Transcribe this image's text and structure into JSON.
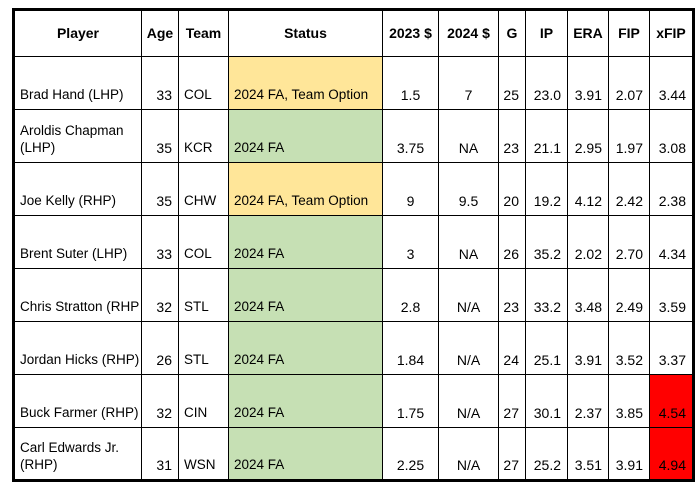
{
  "table": {
    "header": {
      "cells": [
        "Player",
        "Age",
        "Team",
        "Status",
        "2023 $",
        "2024 $",
        "G",
        "IP",
        "ERA",
        "FIP",
        "xFIP"
      ]
    },
    "rows": [
      {
        "player": "Brad Hand (LHP)",
        "age": "33",
        "team": "COL",
        "status": "2024 FA, Team Option",
        "status_color": "#FFE699",
        "money_2023": "1.5",
        "money_2024": "7",
        "g": "25",
        "ip": "23.0",
        "era": "3.91",
        "fip": "2.07",
        "xfip": "3.44",
        "xfip_color": "#FFFFFF"
      },
      {
        "player": "Aroldis Chapman (LHP)",
        "age": "35",
        "team": "KCR",
        "status": "2024 FA",
        "status_color": "#C6E0B4",
        "money_2023": "3.75",
        "money_2024": "NA",
        "g": "23",
        "ip": "21.1",
        "era": "2.95",
        "fip": "1.97",
        "xfip": "3.08",
        "xfip_color": "#FFFFFF"
      },
      {
        "player": "Joe Kelly (RHP)",
        "age": "35",
        "team": "CHW",
        "status": "2024 FA, Team Option",
        "status_color": "#FFE699",
        "money_2023": "9",
        "money_2024": "9.5",
        "g": "20",
        "ip": "19.2",
        "era": "4.12",
        "fip": "2.42",
        "xfip": "2.38",
        "xfip_color": "#FFFFFF"
      },
      {
        "player": "Brent Suter (LHP)",
        "age": "33",
        "team": "COL",
        "status": "2024 FA",
        "status_color": "#C6E0B4",
        "money_2023": "3",
        "money_2024": "NA",
        "g": "26",
        "ip": "35.2",
        "era": "2.02",
        "fip": "2.70",
        "xfip": "4.34",
        "xfip_color": "#FFFFFF"
      },
      {
        "player": "Chris Stratton (RHP",
        "age": "32",
        "team": "STL",
        "status": "2024 FA",
        "status_color": "#C6E0B4",
        "money_2023": "2.8",
        "money_2024": "N/A",
        "g": "23",
        "ip": "33.2",
        "era": "3.48",
        "fip": "2.49",
        "xfip": "3.59",
        "xfip_color": "#FFFFFF"
      },
      {
        "player": "Jordan Hicks (RHP)",
        "age": "26",
        "team": "STL",
        "status": "2024 FA",
        "status_color": "#C6E0B4",
        "money_2023": "1.84",
        "money_2024": "N/A",
        "g": "24",
        "ip": "25.1",
        "era": "3.91",
        "fip": "3.52",
        "xfip": "3.37",
        "xfip_color": "#FFFFFF"
      },
      {
        "player": "Buck Farmer (RHP)",
        "age": "32",
        "team": "CIN",
        "status": "2024 FA",
        "status_color": "#C6E0B4",
        "money_2023": "1.75",
        "money_2024": "N/A",
        "g": "27",
        "ip": "30.1",
        "era": "2.37",
        "fip": "3.85",
        "xfip": "4.54",
        "xfip_color": "#FF0000"
      },
      {
        "player": "Carl Edwards Jr. (RHP)",
        "age": "31",
        "team": "WSN",
        "status": "2024 FA",
        "status_color": "#C6E0B4",
        "money_2023": "2.25",
        "money_2024": "N/A",
        "g": "27",
        "ip": "25.2",
        "era": "3.51",
        "fip": "3.91",
        "xfip": "4.94",
        "xfip_color": "#FF0000"
      }
    ]
  },
  "colors": {
    "yellow": "#FFE699",
    "green": "#C6E0B4",
    "red": "#FF0000"
  }
}
